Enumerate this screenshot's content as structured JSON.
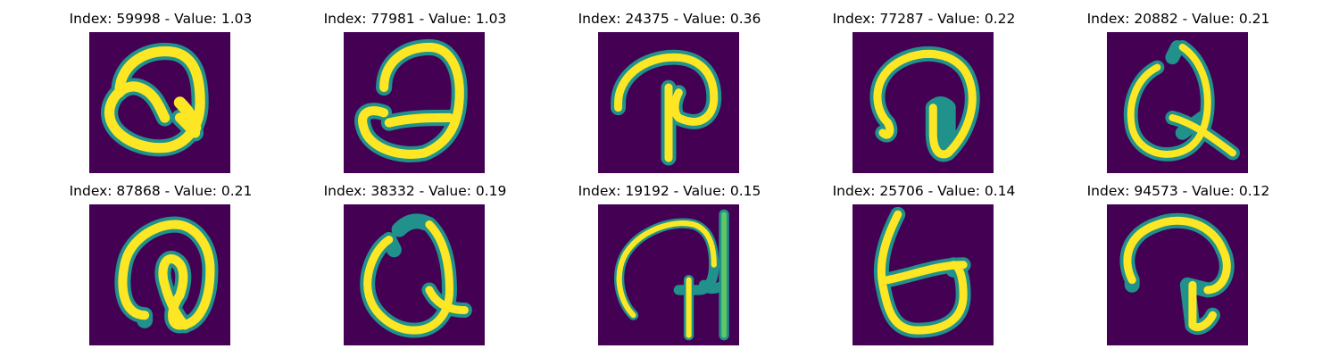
{
  "palette": {
    "low": "#440154",
    "mid1": "#31688e",
    "mid2": "#21918c",
    "mid3": "#5ec962",
    "high": "#fde725"
  },
  "panels": [
    {
      "title": "Index: 59998 - Value: 1.03",
      "glyph": "Q-like digit, loop with tail crossing inside",
      "icon": "handwritten-Q-icon"
    },
    {
      "title": "Index: 77981 - Value: 1.03",
      "glyph": "Q-like digit, loop with inner horizontal bar",
      "icon": "handwritten-Q-icon"
    },
    {
      "title": "Index: 24375 - Value: 0.36",
      "glyph": "P-like hook with vertical stem",
      "icon": "handwritten-P-icon"
    },
    {
      "title": "Index: 77287 - Value: 0.22",
      "glyph": "arc with curl and inner stem",
      "icon": "handwritten-arc-icon"
    },
    {
      "title": "Index: 20882 - Value: 0.21",
      "glyph": "Q-like loop with diagonal tail",
      "icon": "handwritten-Q-icon"
    },
    {
      "title": "Index: 87868 - Value: 0.21",
      "glyph": "double-arc shape with inner stroke",
      "icon": "handwritten-arc-icon"
    },
    {
      "title": "Index: 38332 - Value: 0.19",
      "glyph": "Q-like loop with short tail",
      "icon": "handwritten-Q-icon"
    },
    {
      "title": "Index: 19192 - Value: 0.15",
      "glyph": "wide arc with vertical bars at right",
      "icon": "handwritten-arc-icon"
    },
    {
      "title": "Index: 25706 - Value: 0.14",
      "glyph": "b-like shape with closed bottom bowl",
      "icon": "handwritten-b-icon"
    },
    {
      "title": "Index: 94573 - Value: 0.12",
      "glyph": "hook arc with stem descending",
      "icon": "handwritten-hook-icon"
    }
  ]
}
